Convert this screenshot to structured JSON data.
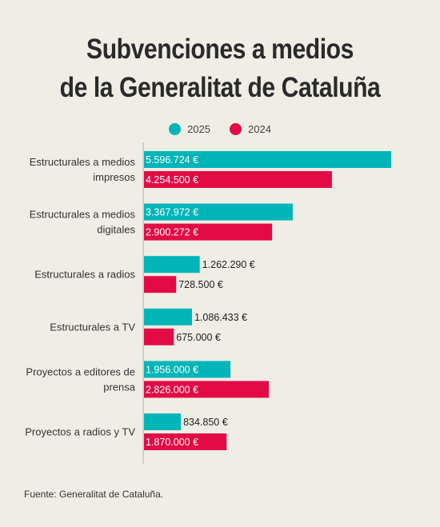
{
  "title_line1": "Subvenciones a medios",
  "title_line2": "de la Generalitat de Cataluña",
  "source": "Fuente: Generalitat de Cataluña.",
  "colors": {
    "2025": "#00b5b8",
    "2024": "#e30b45"
  },
  "chart_data": {
    "type": "bar",
    "orientation": "horizontal",
    "title": "Subvenciones a medios de la Generalitat de Cataluña",
    "legend_position": "top",
    "categories": [
      [
        "Estructurales a medios",
        "impresos"
      ],
      [
        "Estructurales a medios",
        "digitales"
      ],
      [
        "Estructurales a radios"
      ],
      [
        "Estructurales a TV"
      ],
      [
        "Proyectos a editores de",
        "prensa"
      ],
      [
        "Proyectos a radios y TV"
      ]
    ],
    "series": [
      {
        "name": "2025",
        "color": "#00b5b8",
        "values": [
          5596724,
          3367972,
          1262290,
          1086433,
          1956000,
          834850
        ],
        "labels": [
          "5.596.724 €",
          "3.367.972 €",
          "1.262.290 €",
          "1.086.433 €",
          "1.956.000 €",
          "834.850 €"
        ]
      },
      {
        "name": "2024",
        "color": "#e30b45",
        "values": [
          4254500,
          2900272,
          728500,
          675000,
          2826000,
          1870000
        ],
        "labels": [
          "4.254.500 €",
          "2.900.272 €",
          "728.500 €",
          "675.000 €",
          "2.826.000 €",
          "1.870.000 €"
        ]
      }
    ],
    "xlim": [
      0,
      5596724
    ],
    "grid": false
  }
}
